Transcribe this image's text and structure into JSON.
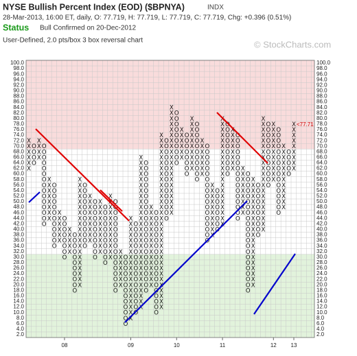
{
  "chart_data": {
    "type": "point-and-figure",
    "title": "NYSE Bullish Percent Index (EOD) ($BPNYA)",
    "exchange": "INDX",
    "quote": "28-Mar-2013, 16:00 ET, daily, O: 77.719, H: 77.719, L: 77.719, C: 77.719, Chg: +0.396 (0.51%)",
    "status_label": "Status",
    "status": "Bull Confirmed on 20-Dec-2012",
    "subtitle": "User-Defined, 2.0 pts/box 3 box reversal chart",
    "credit": "© StockCharts.com",
    "box_size": 2,
    "last_value": 77.71,
    "last_label": "<77.71",
    "ylim": [
      2,
      100
    ],
    "zones": [
      {
        "from": 70,
        "to": 100,
        "color": "#f9dcdc"
      },
      {
        "from": 2,
        "to": 30,
        "color": "#e2f3dc"
      }
    ],
    "grid": true,
    "yticks": [
      {
        "value": 2,
        "label": "2.0"
      },
      {
        "value": 4,
        "label": "4.0"
      },
      {
        "value": 6,
        "label": "6.0"
      },
      {
        "value": 8,
        "label": "8.0"
      },
      {
        "value": 10,
        "label": "10.0"
      },
      {
        "value": 12,
        "label": "12.0"
      },
      {
        "value": 14,
        "label": "14.0"
      },
      {
        "value": 16,
        "label": "16.0"
      },
      {
        "value": 18,
        "label": "18.0"
      },
      {
        "value": 20,
        "label": "20.0"
      },
      {
        "value": 22,
        "label": "22.0"
      },
      {
        "value": 24,
        "label": "24.0"
      },
      {
        "value": 26,
        "label": "26.0"
      },
      {
        "value": 28,
        "label": "28.0"
      },
      {
        "value": 30,
        "label": "30.0"
      },
      {
        "value": 32,
        "label": "32.0"
      },
      {
        "value": 34,
        "label": "34.0"
      },
      {
        "value": 36,
        "label": "36.0"
      },
      {
        "value": 38,
        "label": "38.0"
      },
      {
        "value": 40,
        "label": "40.0"
      },
      {
        "value": 42,
        "label": "42.0"
      },
      {
        "value": 44,
        "label": "44.0"
      },
      {
        "value": 46,
        "label": "46.0"
      },
      {
        "value": 48,
        "label": "48.0"
      },
      {
        "value": 50,
        "label": "50.0"
      },
      {
        "value": 52,
        "label": "52.0"
      },
      {
        "value": 54,
        "label": "54.0"
      },
      {
        "value": 56,
        "label": "56.0"
      },
      {
        "value": 58,
        "label": "58.0"
      },
      {
        "value": 60,
        "label": "60.0"
      },
      {
        "value": 62,
        "label": "62.0"
      },
      {
        "value": 64,
        "label": "64.0"
      },
      {
        "value": 66,
        "label": "66.0"
      },
      {
        "value": 68,
        "label": "68.0"
      },
      {
        "value": 70,
        "label": "70.0"
      },
      {
        "value": 72,
        "label": "72.0"
      },
      {
        "value": 74,
        "label": "74.0"
      },
      {
        "value": 76,
        "label": "76.0"
      },
      {
        "value": 78,
        "label": "78.0"
      },
      {
        "value": 80,
        "label": "80.0"
      },
      {
        "value": 82,
        "label": "82.0"
      },
      {
        "value": 84,
        "label": "84.0"
      },
      {
        "value": 86,
        "label": "86.0"
      },
      {
        "value": 88,
        "label": "88.0"
      },
      {
        "value": 90,
        "label": "90.0"
      },
      {
        "value": 92,
        "label": "92.0"
      },
      {
        "value": 94,
        "label": "94.0"
      },
      {
        "value": 96,
        "label": "96.0"
      },
      {
        "value": 98,
        "label": "98.0"
      },
      {
        "value": 100,
        "label": "100.0"
      }
    ],
    "columns": [
      {
        "type": "X",
        "low": 62,
        "high": 72
      },
      {
        "type": "O",
        "low": 64,
        "high": 70
      },
      {
        "type": "X",
        "low": 66,
        "high": 72
      },
      {
        "type": "O",
        "low": 42,
        "high": 70
      },
      {
        "type": "X",
        "low": 44,
        "high": 58
      },
      {
        "type": "O",
        "low": 34,
        "high": 56
      },
      {
        "type": "X",
        "low": 36,
        "high": 46
      },
      {
        "type": "O",
        "low": 30,
        "high": 44,
        "label": "08"
      },
      {
        "type": "X",
        "low": 32,
        "high": 40
      },
      {
        "type": "O",
        "low": 18,
        "high": 38
      },
      {
        "type": "X",
        "low": 20,
        "high": 58
      },
      {
        "type": "O",
        "low": 34,
        "high": 56
      },
      {
        "type": "X",
        "low": 36,
        "high": 52
      },
      {
        "type": "O",
        "low": 30,
        "high": 50
      },
      {
        "type": "X",
        "low": 32,
        "high": 50
      },
      {
        "type": "O",
        "low": 28,
        "high": 48
      },
      {
        "type": "X",
        "low": 30,
        "high": 52
      },
      {
        "type": "O",
        "low": 18,
        "high": 50
      },
      {
        "type": "X",
        "low": 20,
        "high": 32
      },
      {
        "type": "O",
        "low": 6,
        "high": 30
      },
      {
        "type": "X",
        "low": 8,
        "high": 44,
        "label": "09"
      },
      {
        "type": "O",
        "low": 10,
        "high": 42
      },
      {
        "type": "X",
        "low": 12,
        "high": 66
      },
      {
        "type": "O",
        "low": 18,
        "high": 64
      },
      {
        "type": "X",
        "low": 20,
        "high": 48
      },
      {
        "type": "O",
        "low": 10,
        "high": 46
      },
      {
        "type": "X",
        "low": 12,
        "high": 74
      },
      {
        "type": "O",
        "low": 44,
        "high": 72
      },
      {
        "type": "X",
        "low": 46,
        "high": 84
      },
      {
        "type": "O",
        "low": 64,
        "high": 82,
        "label": "10"
      },
      {
        "type": "X",
        "low": 66,
        "high": 76
      },
      {
        "type": "O",
        "low": 60,
        "high": 74
      },
      {
        "type": "X",
        "low": 62,
        "high": 80
      },
      {
        "type": "O",
        "low": 58,
        "high": 78
      },
      {
        "type": "X",
        "low": 60,
        "high": 72
      },
      {
        "type": "O",
        "low": 36,
        "high": 70
      },
      {
        "type": "X",
        "low": 38,
        "high": 56
      },
      {
        "type": "O",
        "low": 40,
        "high": 54
      },
      {
        "type": "X",
        "low": 42,
        "high": 80,
        "label": "11"
      },
      {
        "type": "O",
        "low": 60,
        "high": 78
      },
      {
        "type": "X",
        "low": 62,
        "high": 76
      },
      {
        "type": "O",
        "low": 44,
        "high": 74
      },
      {
        "type": "X",
        "low": 46,
        "high": 62
      },
      {
        "type": "O",
        "low": 18,
        "high": 60
      },
      {
        "type": "X",
        "low": 20,
        "high": 58
      },
      {
        "type": "O",
        "low": 38,
        "high": 56
      },
      {
        "type": "X",
        "low": 40,
        "high": 80
      },
      {
        "type": "O",
        "low": 56,
        "high": 78
      },
      {
        "type": "X",
        "low": 58,
        "high": 78,
        "label": "12"
      },
      {
        "type": "O",
        "low": 46,
        "high": 76
      },
      {
        "type": "X",
        "low": 48,
        "high": 70
      },
      {
        "type": "O",
        "low": 60,
        "high": 68
      },
      {
        "type": "X",
        "low": 62,
        "high": 78,
        "label": "13"
      }
    ]
  }
}
